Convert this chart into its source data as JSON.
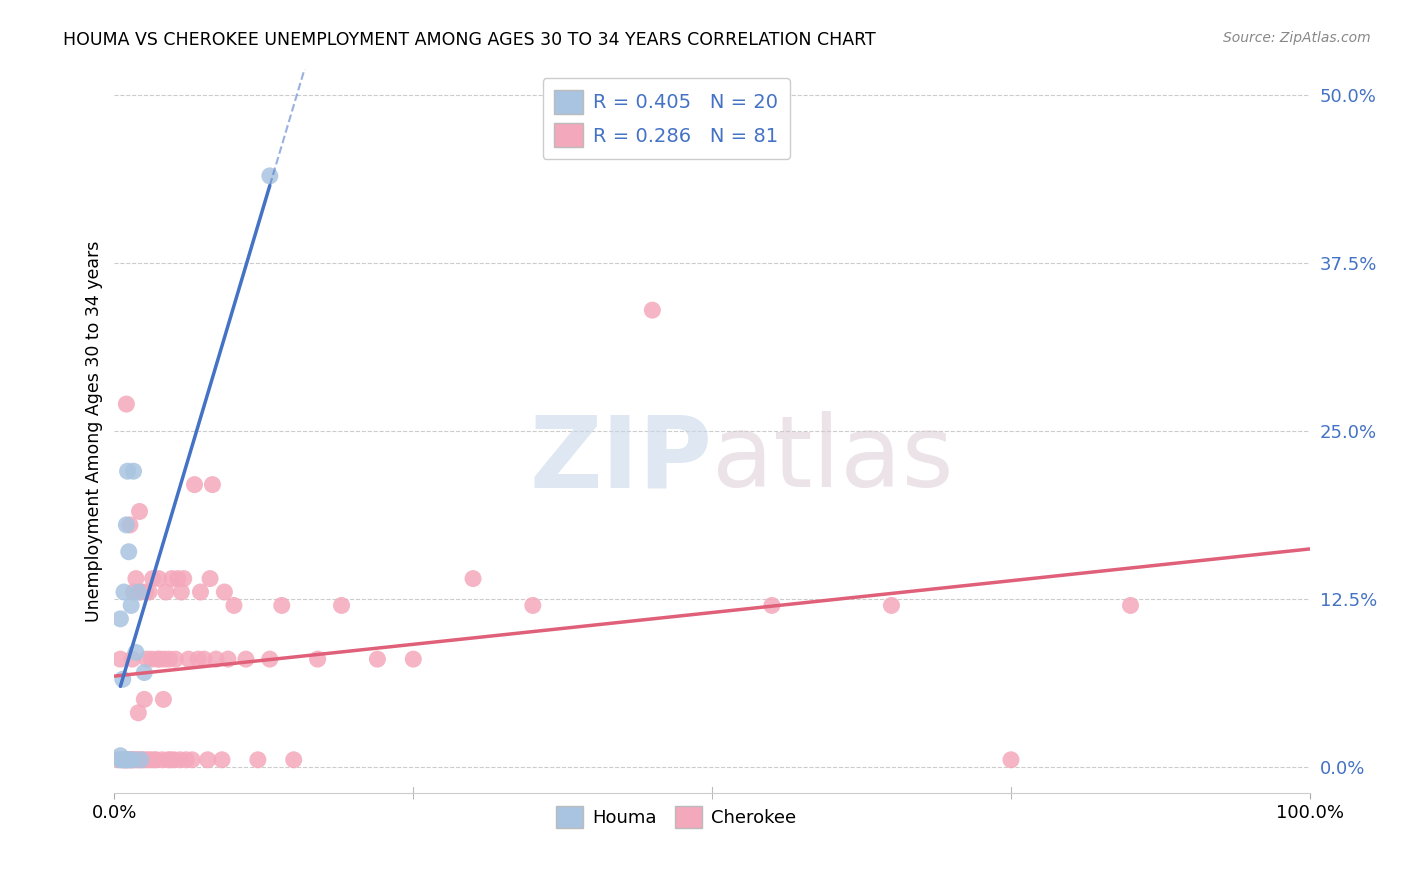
{
  "title": "HOUMA VS CHEROKEE UNEMPLOYMENT AMONG AGES 30 TO 34 YEARS CORRELATION CHART",
  "source": "Source: ZipAtlas.com",
  "ylabel": "Unemployment Among Ages 30 to 34 years",
  "ytick_labels": [
    "0.0%",
    "12.5%",
    "25.0%",
    "37.5%",
    "50.0%"
  ],
  "ytick_values": [
    0.0,
    0.125,
    0.25,
    0.375,
    0.5
  ],
  "xtick_labels": [
    "0.0%",
    "100.0%"
  ],
  "xtick_values": [
    0.0,
    1.0
  ],
  "xlim": [
    0.0,
    1.0
  ],
  "ylim": [
    -0.02,
    0.52
  ],
  "houma_color": "#a8c4e0",
  "cherokee_color": "#f4a8bb",
  "houma_line_color": "#4472c4",
  "cherokee_line_color": "#e0607a",
  "houma_R": 0.405,
  "houma_N": 20,
  "cherokee_R": 0.286,
  "cherokee_N": 81,
  "watermark_zip": "ZIP",
  "watermark_atlas": "atlas",
  "background_color": "#ffffff",
  "grid_color": "#cccccc",
  "houma_x": [
    0.005,
    0.005,
    0.005,
    0.006,
    0.007,
    0.008,
    0.009,
    0.01,
    0.01,
    0.011,
    0.012,
    0.013,
    0.014,
    0.015,
    0.016,
    0.018,
    0.02,
    0.022,
    0.025,
    0.13
  ],
  "houma_y": [
    0.005,
    0.008,
    0.11,
    0.005,
    0.065,
    0.13,
    0.005,
    0.005,
    0.18,
    0.22,
    0.16,
    0.005,
    0.12,
    0.005,
    0.22,
    0.085,
    0.13,
    0.005,
    0.07,
    0.44
  ],
  "cherokee_x": [
    0.003,
    0.005,
    0.007,
    0.008,
    0.009,
    0.01,
    0.01,
    0.011,
    0.012,
    0.013,
    0.014,
    0.015,
    0.015,
    0.016,
    0.017,
    0.018,
    0.019,
    0.02,
    0.02,
    0.021,
    0.022,
    0.023,
    0.025,
    0.025,
    0.026,
    0.027,
    0.028,
    0.029,
    0.03,
    0.031,
    0.032,
    0.033,
    0.035,
    0.036,
    0.037,
    0.038,
    0.04,
    0.041,
    0.042,
    0.043,
    0.045,
    0.046,
    0.047,
    0.048,
    0.05,
    0.051,
    0.053,
    0.055,
    0.056,
    0.058,
    0.06,
    0.062,
    0.065,
    0.067,
    0.07,
    0.072,
    0.075,
    0.078,
    0.08,
    0.082,
    0.085,
    0.09,
    0.092,
    0.095,
    0.1,
    0.11,
    0.12,
    0.13,
    0.14,
    0.15,
    0.17,
    0.19,
    0.22,
    0.25,
    0.3,
    0.35,
    0.45,
    0.55,
    0.65,
    0.75,
    0.85
  ],
  "cherokee_y": [
    0.005,
    0.08,
    0.005,
    0.005,
    0.005,
    0.005,
    0.27,
    0.005,
    0.005,
    0.18,
    0.005,
    0.005,
    0.08,
    0.13,
    0.005,
    0.14,
    0.005,
    0.005,
    0.04,
    0.19,
    0.13,
    0.005,
    0.005,
    0.05,
    0.13,
    0.08,
    0.005,
    0.13,
    0.005,
    0.08,
    0.14,
    0.005,
    0.005,
    0.08,
    0.14,
    0.08,
    0.005,
    0.05,
    0.08,
    0.13,
    0.005,
    0.08,
    0.005,
    0.14,
    0.005,
    0.08,
    0.14,
    0.005,
    0.13,
    0.14,
    0.005,
    0.08,
    0.005,
    0.21,
    0.08,
    0.13,
    0.08,
    0.005,
    0.14,
    0.21,
    0.08,
    0.005,
    0.13,
    0.08,
    0.12,
    0.08,
    0.005,
    0.08,
    0.12,
    0.005,
    0.08,
    0.12,
    0.08,
    0.08,
    0.14,
    0.12,
    0.34,
    0.12,
    0.12,
    0.005,
    0.12
  ]
}
